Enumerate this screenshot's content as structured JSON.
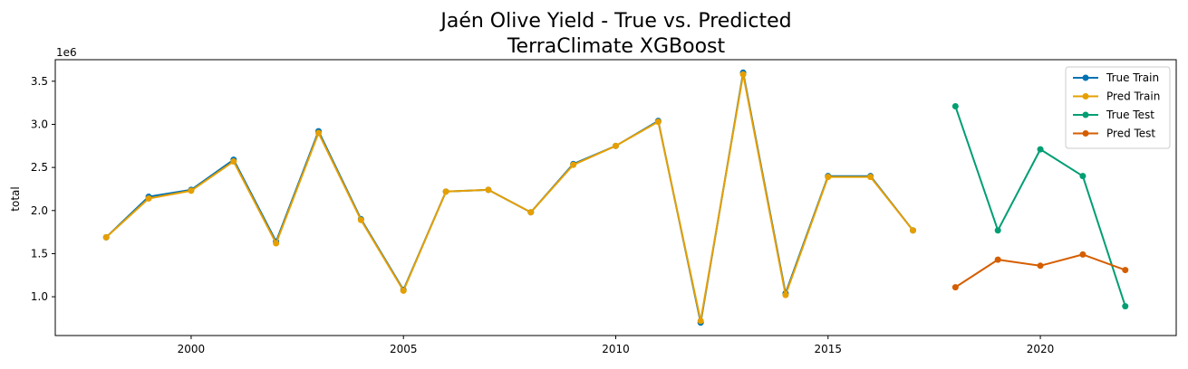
{
  "chart_data": {
    "type": "line",
    "title": "Jaén Olive Yield - True vs. Predicted",
    "subtitle": "TerraClimate XGBoost",
    "xlabel": "",
    "ylabel": "total",
    "y_offset_label": "1e6",
    "xlim": [
      1996.8,
      2023.2
    ],
    "ylim": [
      0.55,
      3.75
    ],
    "y_scale_factor": 1000000,
    "x_ticks": [
      2000,
      2005,
      2010,
      2015,
      2020
    ],
    "x_tick_labels": [
      "2000",
      "2005",
      "2010",
      "2015",
      "2020"
    ],
    "y_ticks": [
      1.0,
      1.5,
      2.0,
      2.5,
      3.0,
      3.5
    ],
    "y_tick_labels": [
      "1.0",
      "1.5",
      "2.0",
      "2.5",
      "3.0",
      "3.5"
    ],
    "grid": false,
    "legend_position": "top-right",
    "series": [
      {
        "name": "True Train",
        "color": "#0072b2",
        "x": [
          1998,
          1999,
          2000,
          2001,
          2002,
          2003,
          2004,
          2005,
          2006,
          2007,
          2008,
          2009,
          2010,
          2011,
          2012,
          2013,
          2014,
          2015,
          2016,
          2017
        ],
        "y": [
          1.69,
          2.16,
          2.24,
          2.59,
          1.64,
          2.92,
          1.9,
          1.08,
          2.22,
          2.24,
          1.98,
          2.54,
          2.75,
          3.04,
          0.7,
          3.6,
          1.04,
          2.4,
          2.4,
          1.77
        ]
      },
      {
        "name": "Pred Train",
        "color": "#e69f00",
        "x": [
          1998,
          1999,
          2000,
          2001,
          2002,
          2003,
          2004,
          2005,
          2006,
          2007,
          2008,
          2009,
          2010,
          2011,
          2012,
          2013,
          2014,
          2015,
          2016,
          2017
        ],
        "y": [
          1.69,
          2.14,
          2.23,
          2.57,
          1.62,
          2.9,
          1.89,
          1.07,
          2.22,
          2.24,
          1.98,
          2.53,
          2.75,
          3.03,
          0.72,
          3.58,
          1.02,
          2.39,
          2.39,
          1.77
        ]
      },
      {
        "name": "True Test",
        "color": "#009e73",
        "x": [
          2018,
          2019,
          2020,
          2021,
          2022
        ],
        "y": [
          3.21,
          1.77,
          2.71,
          2.4,
          0.89
        ]
      },
      {
        "name": "Pred Test",
        "color": "#d55e00",
        "x": [
          2018,
          2019,
          2020,
          2021,
          2022
        ],
        "y": [
          1.11,
          1.43,
          1.36,
          1.49,
          1.31
        ]
      }
    ]
  }
}
